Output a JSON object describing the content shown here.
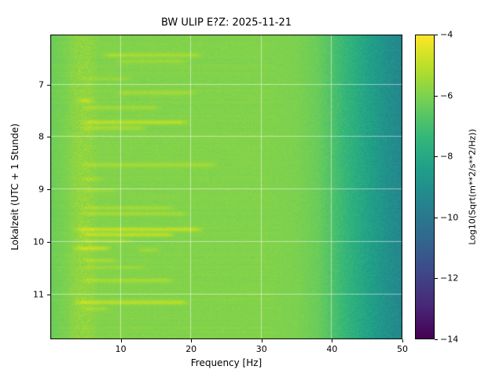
{
  "chart_data": {
    "type": "heatmap",
    "subtype": "spectrogram",
    "title": "BW ULIP  E?Z: 2025-11-21",
    "xlabel": "Frequency [Hz]",
    "ylabel": "Lokalzeit (UTC + 1 Stunde)",
    "x_range": [
      0,
      50
    ],
    "x_ticks": [
      10,
      20,
      30,
      40,
      50
    ],
    "y_range": [
      6.05,
      11.85
    ],
    "y_ticks": [
      7,
      8,
      9,
      10,
      11
    ],
    "grid": true,
    "grid_color": "#ffffff",
    "grid_alpha": 0.5,
    "colorbar": {
      "label": "Log10(Sqrt(m**2/s**2/Hz))",
      "range": [
        -14,
        -4
      ],
      "ticks": [
        -4,
        -6,
        -8,
        -10,
        -12,
        -14
      ]
    },
    "colormap": {
      "name": "viridis",
      "stops": [
        "#440154",
        "#482878",
        "#3e4989",
        "#31688e",
        "#26828e",
        "#1f9e89",
        "#35b779",
        "#6ece58",
        "#b5de2b",
        "#fde725"
      ]
    },
    "background_profile": {
      "freqs": [
        0,
        3,
        30,
        35,
        38,
        40,
        42,
        45,
        48,
        50
      ],
      "values": [
        -6.25,
        -5.9,
        -5.9,
        -6.0,
        -6.3,
        -6.8,
        -7.4,
        -8.2,
        -9.0,
        -9.4
      ]
    },
    "noise_amplitude_low": 0.16,
    "noise_amplitude_high": 0.5,
    "noise_seed": 7,
    "persistent_bands": [
      {
        "f0": 3.5,
        "f1": 6,
        "amp": 0.32
      }
    ],
    "streaks": [
      {
        "t": 6.44,
        "f0": 7,
        "f1": 22,
        "amp": 0.6
      },
      {
        "t": 6.56,
        "f0": 9,
        "f1": 20,
        "amp": 0.45
      },
      {
        "t": 6.89,
        "f0": 4,
        "f1": 12,
        "amp": 0.35
      },
      {
        "t": 7.16,
        "f0": 9,
        "f1": 21,
        "amp": 0.5
      },
      {
        "t": 7.31,
        "f0": 3.5,
        "f1": 6.5,
        "amp": 0.95
      },
      {
        "t": 7.44,
        "f0": 4,
        "f1": 16,
        "amp": 0.5
      },
      {
        "t": 7.72,
        "f0": 4,
        "f1": 20,
        "amp": 0.85
      },
      {
        "t": 7.83,
        "f0": 4,
        "f1": 14,
        "amp": 0.6
      },
      {
        "t": 8.53,
        "f0": 4,
        "f1": 24,
        "amp": 0.55
      },
      {
        "t": 8.8,
        "f0": 4,
        "f1": 8,
        "amp": 0.4
      },
      {
        "t": 9.02,
        "f0": 4,
        "f1": 10,
        "amp": 0.35
      },
      {
        "t": 9.35,
        "f0": 4,
        "f1": 18,
        "amp": 0.5
      },
      {
        "t": 9.46,
        "f0": 4,
        "f1": 20,
        "amp": 0.55
      },
      {
        "t": 9.76,
        "f0": 3,
        "f1": 22,
        "amp": 0.95
      },
      {
        "t": 9.86,
        "f0": 4,
        "f1": 18,
        "amp": 0.85
      },
      {
        "t": 9.98,
        "f0": 4,
        "f1": 12,
        "amp": 0.5
      },
      {
        "t": 10.12,
        "f0": 3,
        "f1": 9,
        "amp": 0.95
      },
      {
        "t": 10.15,
        "f0": 12,
        "f1": 16,
        "amp": 0.5
      },
      {
        "t": 10.35,
        "f0": 4,
        "f1": 10,
        "amp": 0.5
      },
      {
        "t": 10.48,
        "f0": 4,
        "f1": 14,
        "amp": 0.35
      },
      {
        "t": 10.73,
        "f0": 4,
        "f1": 18,
        "amp": 0.6
      },
      {
        "t": 11.15,
        "f0": 3,
        "f1": 20,
        "amp": 0.85
      },
      {
        "t": 11.27,
        "f0": 4,
        "f1": 9,
        "amp": 0.45
      }
    ]
  }
}
